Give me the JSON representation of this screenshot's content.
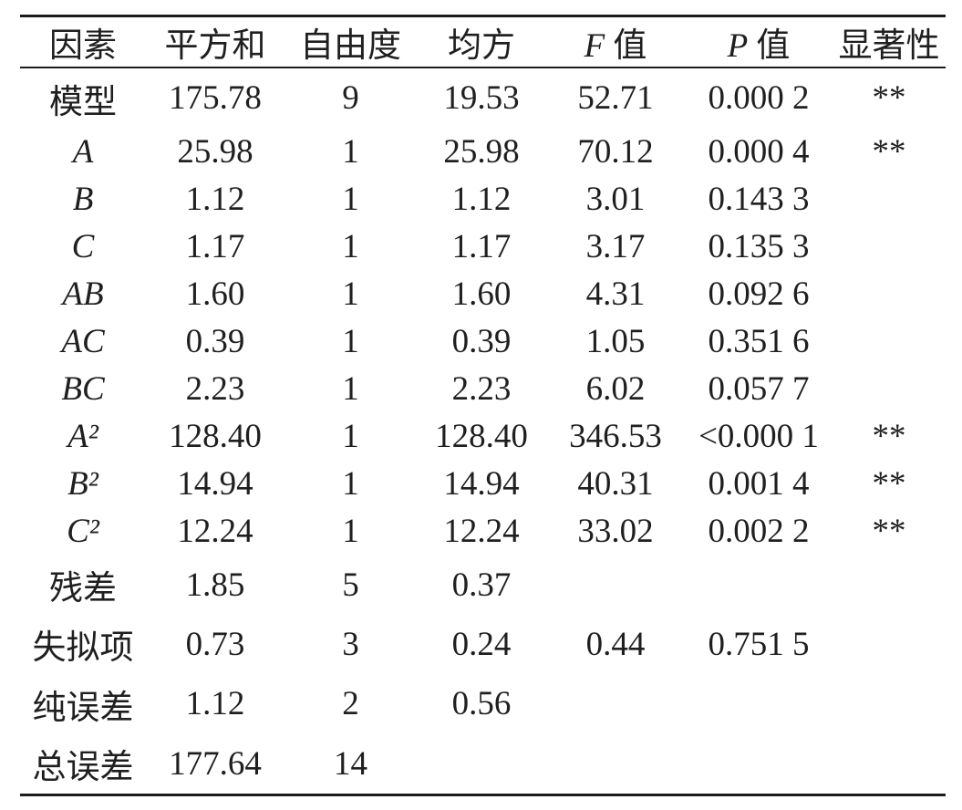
{
  "page": {
    "background": "#ffffff",
    "text_color": "#1f1f1f",
    "rule_color": "#1c1c1c"
  },
  "table": {
    "header": [
      {
        "parts": [
          {
            "text": "因素"
          }
        ]
      },
      {
        "parts": [
          {
            "text": "平方和"
          }
        ]
      },
      {
        "parts": [
          {
            "text": "自由度"
          }
        ]
      },
      {
        "parts": [
          {
            "text": "均方"
          }
        ]
      },
      {
        "parts": [
          {
            "text": "F",
            "italic": true
          },
          {
            "text": " 值"
          }
        ]
      },
      {
        "parts": [
          {
            "text": "P",
            "italic": true
          },
          {
            "text": " 值"
          }
        ]
      },
      {
        "parts": [
          {
            "text": "显著性"
          }
        ]
      }
    ],
    "rows": [
      {
        "factor": "模型",
        "factor_italic": false,
        "values": [
          "175.78",
          "9",
          "19.53",
          "52.71",
          "0.000 2"
        ],
        "significance": "**"
      },
      {
        "factor": "A",
        "factor_italic": true,
        "values": [
          "25.98",
          "1",
          "25.98",
          "70.12",
          "0.000 4"
        ],
        "significance": "**"
      },
      {
        "factor": "B",
        "factor_italic": true,
        "values": [
          "1.12",
          "1",
          "1.12",
          "3.01",
          "0.143 3"
        ],
        "significance": ""
      },
      {
        "factor": "C",
        "factor_italic": true,
        "values": [
          "1.17",
          "1",
          "1.17",
          "3.17",
          "0.135 3"
        ],
        "significance": ""
      },
      {
        "factor": "AB",
        "factor_italic": true,
        "values": [
          "1.60",
          "1",
          "1.60",
          "4.31",
          "0.092 6"
        ],
        "significance": ""
      },
      {
        "factor": "AC",
        "factor_italic": true,
        "values": [
          "0.39",
          "1",
          "0.39",
          "1.05",
          "0.351 6"
        ],
        "significance": ""
      },
      {
        "factor": "BC",
        "factor_italic": true,
        "values": [
          "2.23",
          "1",
          "2.23",
          "6.02",
          "0.057 7"
        ],
        "significance": ""
      },
      {
        "factor": "A²",
        "factor_italic": true,
        "values": [
          "128.40",
          "1",
          "128.40",
          "346.53",
          "<0.000 1"
        ],
        "significance": "**"
      },
      {
        "factor": "B²",
        "factor_italic": true,
        "values": [
          "14.94",
          "1",
          "14.94",
          "40.31",
          "0.001 4"
        ],
        "significance": "**"
      },
      {
        "factor": "C²",
        "factor_italic": true,
        "values": [
          "12.24",
          "1",
          "12.24",
          "33.02",
          "0.002 2"
        ],
        "significance": "**"
      },
      {
        "factor": "残差",
        "factor_italic": false,
        "values": [
          "1.85",
          "5",
          "0.37",
          "",
          ""
        ],
        "significance": ""
      },
      {
        "factor": "失拟项",
        "factor_italic": false,
        "values": [
          "0.73",
          "3",
          "0.24",
          "0.44",
          "0.751 5"
        ],
        "significance": ""
      },
      {
        "factor": "纯误差",
        "factor_italic": false,
        "values": [
          "1.12",
          "2",
          "0.56",
          "",
          ""
        ],
        "significance": ""
      },
      {
        "factor": "总误差",
        "factor_italic": false,
        "values": [
          "177.64",
          "14",
          "",
          "",
          ""
        ],
        "significance": ""
      }
    ]
  }
}
